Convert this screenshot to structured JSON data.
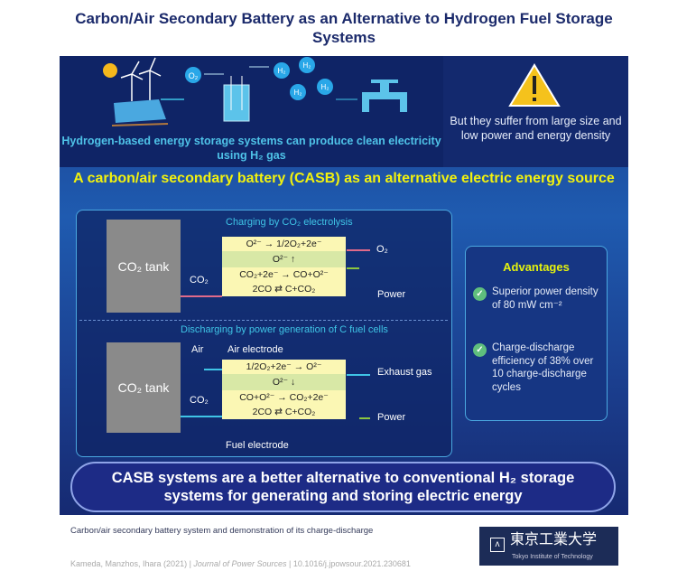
{
  "title": "Carbon/Air Secondary Battery as an Alternative to Hydrogen Fuel Storage Systems",
  "top": {
    "o2": "O₂",
    "h2": "H₂",
    "description": "Hydrogen-based energy storage systems can produce clean electricity using H₂ gas",
    "warning": "But they suffer from large size and low power and energy density"
  },
  "casb_title": "A carbon/air secondary battery (CASB) as an alternative electric energy source",
  "charging": {
    "title": "Charging by CO₂ electrolysis",
    "tank": "CO₂ tank",
    "input": "CO₂",
    "reactions": [
      "O²⁻ → 1/2O₂+2e⁻",
      "O²⁻ ↑",
      "CO₂+2e⁻ → CO+O²⁻",
      "2CO ⇄ C+CO₂"
    ],
    "output": "O₂",
    "power": "Power"
  },
  "discharging": {
    "title": "Discharging by power generation of C fuel cells",
    "tank": "CO₂ tank",
    "air": "Air",
    "air_electrode": "Air electrode",
    "output_co2": "CO₂",
    "reactions": [
      "1/2O₂+2e⁻ → O²⁻",
      "O²⁻ ↓",
      "CO+O²⁻ → CO₂+2e⁻",
      "2CO ⇄ C+CO₂"
    ],
    "exhaust": "Exhaust gas",
    "power": "Power",
    "fuel_electrode": "Fuel electrode"
  },
  "advantages": {
    "title": "Advantages",
    "items": [
      "Superior power density of 80 mW cm⁻²",
      "Charge-discharge efficiency of 38% over 10 charge-discharge cycles"
    ]
  },
  "conclusion": "CASB systems are a better alternative to conventional H₂ storage systems for generating and storing electric energy",
  "footer": {
    "paper_title": "Carbon/air secondary battery system and demonstration of its charge-discharge",
    "authors": "Kameda, Manzhos, Ihara (2021)",
    "journal": "Journal of Power Sources",
    "doi": "10.1016/j.jpowsour.2021.230681",
    "logo_jp": "東京工業大学",
    "logo_en": "Tokyo Institute of Technology"
  },
  "colors": {
    "navy": "#0f2466",
    "yellow": "#f2f20e",
    "cyan": "#3fc4e6",
    "cell": "#fbf7b4"
  }
}
